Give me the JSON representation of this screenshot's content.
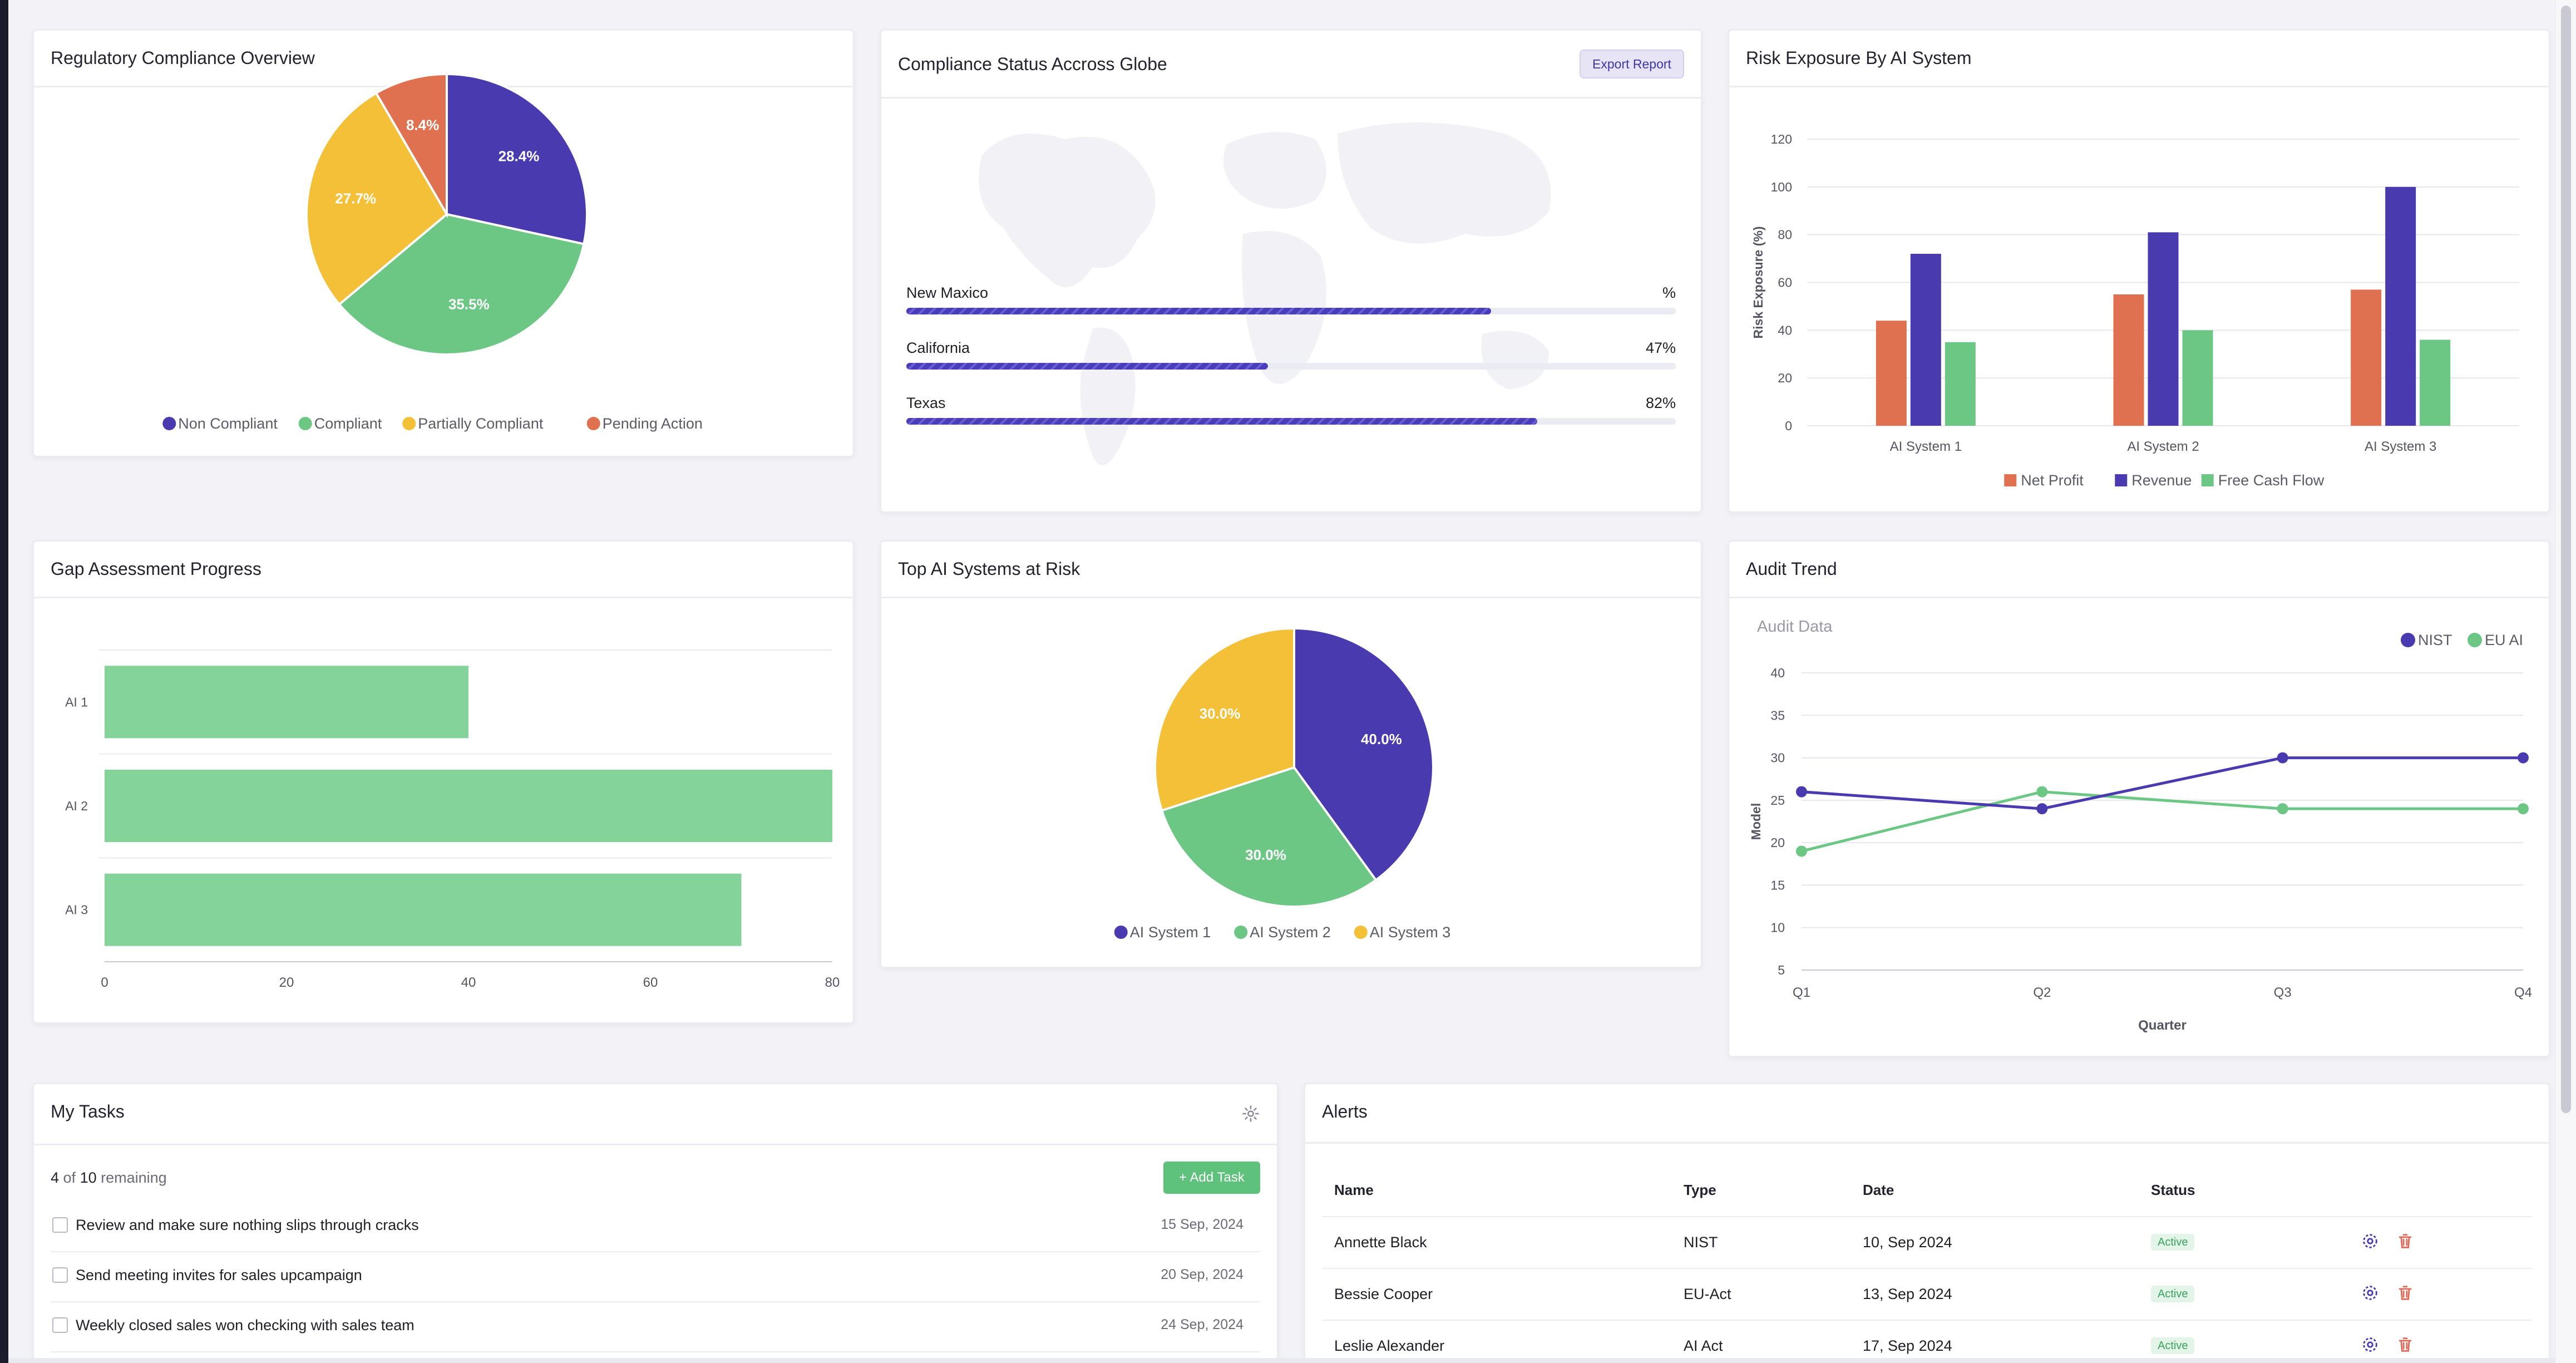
{
  "regulatory": {
    "title": "Regulatory Compliance Overview",
    "legend": [
      {
        "label": "Non Compliant",
        "color": "#4a3aaf"
      },
      {
        "label": "Compliant",
        "color": "#6cc785"
      },
      {
        "label": "Partially Compliant",
        "color": "#f4c038"
      },
      {
        "label": "Pending Action",
        "color": "#e07150"
      }
    ]
  },
  "globe": {
    "title": "Compliance Status Accross Globe",
    "export_label": "Export Report",
    "locations": [
      {
        "name": "New Maxico",
        "percent_text": "%",
        "value": 76
      },
      {
        "name": "California",
        "percent_text": "47%",
        "value": 47
      },
      {
        "name": "Texas",
        "percent_text": "82%",
        "value": 82
      }
    ]
  },
  "risk": {
    "title": "Risk Exposure By AI System",
    "legend": [
      {
        "label": "Net Profit",
        "color": "#e07150"
      },
      {
        "label": "Revenue",
        "color": "#4a3aaf"
      },
      {
        "label": "Free Cash Flow",
        "color": "#6cc785"
      }
    ]
  },
  "gap": {
    "title": "Gap Assessment Progress"
  },
  "top_ai": {
    "title": "Top AI Systems at Risk",
    "legend": [
      {
        "label": "AI System 1",
        "color": "#4a3aaf"
      },
      {
        "label": "AI System 2",
        "color": "#6cc785"
      },
      {
        "label": "AI System 3",
        "color": "#f4c038"
      }
    ]
  },
  "audit": {
    "title": "Audit Trend",
    "legend": [
      {
        "label": "NIST",
        "color": "#4a3aaf"
      },
      {
        "label": "EU AI",
        "color": "#6cc785"
      }
    ]
  },
  "tasks": {
    "title": "My Tasks",
    "remaining_count": "4",
    "remaining_of": " of ",
    "remaining_total": "10",
    "remaining_suffix": " remaining",
    "add_label": "+  Add Task",
    "items": [
      {
        "text": "Review and make sure nothing slips through cracks",
        "date": "15 Sep, 2024"
      },
      {
        "text": "Send meeting invites for sales upcampaign",
        "date": "20 Sep, 2024"
      },
      {
        "text": "Weekly closed sales won checking with sales team",
        "date": "24 Sep, 2024"
      }
    ]
  },
  "alerts": {
    "title": "Alerts",
    "columns": [
      "Name",
      "Type",
      "Date",
      "Status"
    ],
    "rows": [
      {
        "name": "Annette Black",
        "type": "NIST",
        "date": "10, Sep 2024",
        "status": "Active"
      },
      {
        "name": "Bessie Cooper",
        "type": "EU-Act",
        "date": "13, Sep 2024",
        "status": "Active"
      },
      {
        "name": "Leslie Alexander",
        "type": "AI Act",
        "date": "17, Sep 2024",
        "status": "Active"
      }
    ]
  },
  "chart_data": [
    {
      "type": "pie",
      "title": "Regulatory Compliance Overview",
      "labels": [
        "Non Compliant",
        "Compliant",
        "Partially Compliant",
        "Pending Action"
      ],
      "values": [
        28.4,
        35.5,
        27.7,
        8.4
      ],
      "value_labels": [
        "28.4%",
        "35.5%",
        "27.7%",
        "8.4%"
      ],
      "colors": [
        "#4a3aaf",
        "#6cc785",
        "#f4c038",
        "#e07150"
      ],
      "legend": "bottom"
    },
    {
      "type": "bar",
      "title": "Risk Exposure By AI System",
      "categories": [
        "AI System 1",
        "AI System 2",
        "AI System 3"
      ],
      "series": [
        {
          "name": "Net Profit",
          "values": [
            44,
            55,
            57
          ],
          "color": "#e07150"
        },
        {
          "name": "Revenue",
          "values": [
            72,
            81,
            100
          ],
          "color": "#4a3aaf"
        },
        {
          "name": "Free Cash Flow",
          "values": [
            35,
            40,
            36
          ],
          "color": "#6cc785"
        }
      ],
      "ylabel": "Risk Exposure (%)",
      "ylim": [
        0,
        120
      ],
      "yticks": [
        0,
        20,
        40,
        60,
        80,
        100,
        120
      ],
      "legend": "bottom"
    },
    {
      "type": "bar",
      "orientation": "horizontal",
      "title": "Gap Assessment Progress",
      "categories": [
        "AI 1",
        "AI 2",
        "AI 3"
      ],
      "values": [
        40,
        80,
        70
      ],
      "color": "#84d39b",
      "xlim": [
        0,
        80
      ],
      "xticks": [
        0,
        20,
        40,
        60,
        80
      ]
    },
    {
      "type": "pie",
      "title": "Top AI Systems at Risk",
      "labels": [
        "AI System 1",
        "AI System 2",
        "AI System 3"
      ],
      "values": [
        40,
        30,
        30
      ],
      "value_labels": [
        "40.0%",
        "30.0%",
        "30.0%"
      ],
      "colors": [
        "#4a3aaf",
        "#6cc785",
        "#f4c038"
      ],
      "legend": "bottom"
    },
    {
      "type": "line",
      "title": "Audit Trend",
      "subtitle": "Audit Data",
      "categories": [
        "Q1",
        "Q2",
        "Q3",
        "Q4"
      ],
      "series": [
        {
          "name": "NIST",
          "values": [
            26,
            24,
            30,
            30
          ],
          "color": "#4a3aaf"
        },
        {
          "name": "EU AI",
          "values": [
            19,
            26,
            24,
            24
          ],
          "color": "#6cc785"
        }
      ],
      "xlabel": "Quarter",
      "ylabel": "Model",
      "ylim": [
        5,
        40
      ],
      "yticks": [
        5,
        10,
        15,
        20,
        25,
        30,
        35,
        40
      ],
      "legend": "top-right"
    }
  ]
}
